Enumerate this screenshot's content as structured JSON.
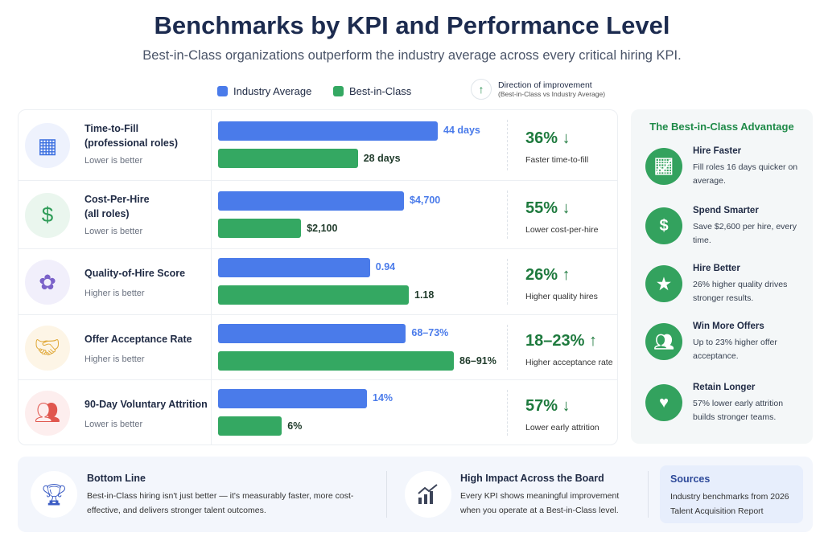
{
  "title": "Benchmarks by KPI and Performance Level",
  "subtitle": "Best-in-Class organizations outperform the industry average across every critical hiring KPI.",
  "legend": {
    "industry": "Industry Average",
    "best": "Best-in-Class",
    "direction_title": "Direction of improvement",
    "direction_sub": "(Best-in-Class vs Industry Average)",
    "direction_icon": "arrow-up-icon"
  },
  "colors": {
    "industry": "#4a7bea",
    "best": "#34a862",
    "improvement": "#1e7a3e"
  },
  "chart_data": {
    "type": "bar",
    "categories": [
      "Time-to-Fill (professional roles)",
      "Cost-Per-Hire (all roles)",
      "Quality-of-Hire Score",
      "Offer Acceptance Rate",
      "90-Day Voluntary Attrition"
    ],
    "series": [
      {
        "name": "Industry Average",
        "values": [
          44,
          4700,
          0.94,
          70.5,
          14
        ],
        "labels": [
          "44 days",
          "$4,700",
          "0.94",
          "68–73%",
          "14%"
        ]
      },
      {
        "name": "Best-in-Class",
        "values": [
          28,
          2100,
          1.18,
          88.5,
          6
        ],
        "labels": [
          "28 days",
          "$2,100",
          "1.18",
          "86–91%",
          "6%"
        ]
      }
    ],
    "orientation": "horizontal"
  },
  "rows": [
    {
      "title1": "Time-to-Fill",
      "title2": "(professional roles)",
      "note": "Lower is better",
      "pct": "36% ↓",
      "pct_label": "Faster time-to-fill",
      "icon": "calendar-icon"
    },
    {
      "title1": "Cost-Per-Hire",
      "title2": "(all roles)",
      "note": "Lower is better",
      "pct": "55% ↓",
      "pct_label": "Lower cost-per-hire",
      "icon": "dollar-icon"
    },
    {
      "title1": "Quality-of-Hire Score",
      "title2": "",
      "note": "Higher is better",
      "pct": "26% ↑",
      "pct_label": "Higher quality hires",
      "icon": "award-badge-icon"
    },
    {
      "title1": "Offer Acceptance Rate",
      "title2": "",
      "note": "Higher is better",
      "pct": "18–23% ↑",
      "pct_label": "Higher acceptance rate",
      "icon": "handshake-icon"
    },
    {
      "title1": "90-Day Voluntary Attrition",
      "title2": "",
      "note": "Lower is better",
      "pct": "57% ↓",
      "pct_label": "Lower early attrition",
      "icon": "people-icon"
    }
  ],
  "side": {
    "title": "The Best-in-Class Advantage",
    "items": [
      {
        "head": "Hire Faster",
        "desc": "Fill roles 16 days quicker on average.",
        "icon": "growth-chart-icon"
      },
      {
        "head": "Spend Smarter",
        "desc": "Save $2,600 per hire, every time.",
        "icon": "dollar-icon"
      },
      {
        "head": "Hire Better",
        "desc": "26% higher quality drives stronger results.",
        "icon": "star-icon"
      },
      {
        "head": "Win More Offers",
        "desc": "Up to 23% higher offer acceptance.",
        "icon": "group-icon"
      },
      {
        "head": "Retain Longer",
        "desc": "57% lower early attrition builds stronger teams.",
        "icon": "heart-icon"
      }
    ]
  },
  "bottom": {
    "line_title": "Bottom Line",
    "line_text": "Best-in-Class hiring isn't just better — it's measurably faster, more cost-effective, and delivers stronger talent outcomes.",
    "impact_title": "High Impact Across the Board",
    "impact_text": "Every KPI shows meaningful improvement when you operate at a Best-in-Class level.",
    "sources_title": "Sources",
    "sources_text": "Industry benchmarks from 2026 Talent Acquisition Report"
  }
}
